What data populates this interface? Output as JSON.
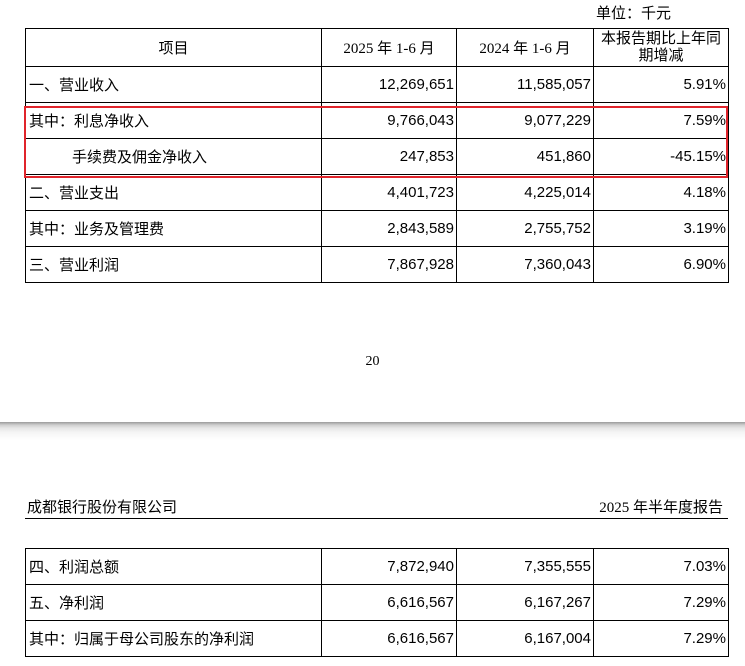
{
  "unit_label": "单位：千元",
  "table1": {
    "headers": [
      "项目",
      "2025 年 1-6 月",
      "2024 年 1-6 月",
      "本报告期比上年同期增减"
    ],
    "rows": [
      {
        "item": "一、营业收入",
        "y2025": "12,269,651",
        "y2024": "11,585,057",
        "change": "5.91%"
      },
      {
        "item": "其中：利息净收入",
        "y2025": "9,766,043",
        "y2024": "9,077,229",
        "change": "7.59%"
      },
      {
        "item": "手续费及佣金净收入",
        "y2025": "247,853",
        "y2024": "451,860",
        "change": "-45.15%"
      },
      {
        "item": "二、营业支出",
        "y2025": "4,401,723",
        "y2024": "4,225,014",
        "change": "4.18%"
      },
      {
        "item": "其中：业务及管理费",
        "y2025": "2,843,589",
        "y2024": "2,755,752",
        "change": "3.19%"
      },
      {
        "item": "三、营业利润",
        "y2025": "7,867,928",
        "y2024": "7,360,043",
        "change": "6.90%"
      }
    ]
  },
  "page_number": "20",
  "next_page": {
    "company": "成都银行股份有限公司",
    "report_title": "2025 年半年度报告"
  },
  "table2": {
    "rows": [
      {
        "item": "四、利润总额",
        "y2025": "7,872,940",
        "y2024": "7,355,555",
        "change": "7.03%"
      },
      {
        "item": "五、净利润",
        "y2025": "6,616,567",
        "y2024": "6,167,267",
        "change": "7.29%"
      },
      {
        "item": "其中：归属于母公司股东的净利润",
        "y2025": "6,616,567",
        "y2024": "6,167,004",
        "change": "7.29%"
      }
    ]
  },
  "colors": {
    "highlight_border": "#e0242b"
  }
}
